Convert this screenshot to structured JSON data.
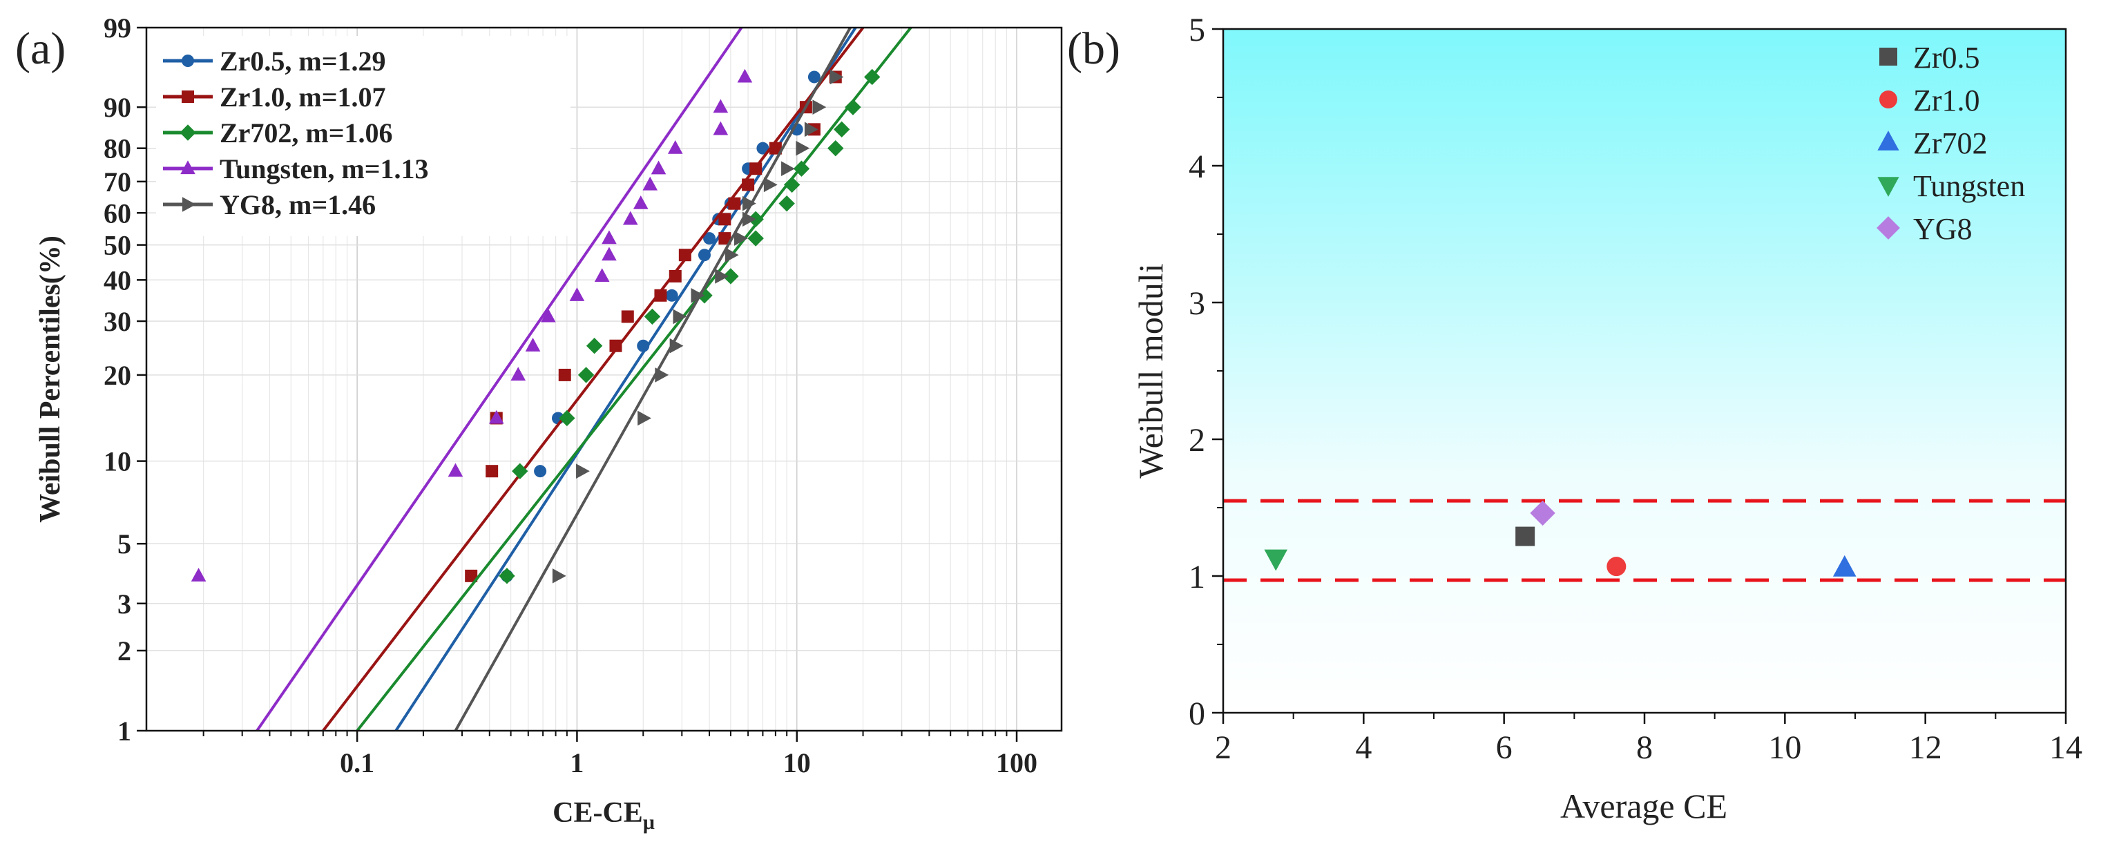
{
  "chart_data": [
    {
      "id": "a",
      "panel_label": "(a)",
      "type": "scatter",
      "subtype": "weibull-probability-plot",
      "xlabel_main": "CE-CE",
      "xlabel_sub": "μ",
      "ylabel": "Weibull Percentiles(%)",
      "x_scale": "log",
      "xlim": [
        0.011,
        160
      ],
      "x_ticks": [
        0.1,
        1,
        10,
        100
      ],
      "x_tick_labels": [
        "0.1",
        "1",
        "10",
        "100"
      ],
      "y_scale": "weibull",
      "ylim": [
        1,
        99
      ],
      "y_ticks": [
        1,
        2,
        3,
        5,
        10,
        20,
        30,
        40,
        50,
        60,
        70,
        80,
        90,
        99
      ],
      "y_tick_labels": [
        "1",
        "2",
        "3",
        "5",
        "10",
        "20",
        "30",
        "40",
        "50",
        "60",
        "70",
        "80",
        "90",
        "99"
      ],
      "grid": true,
      "legend_position": "top-left",
      "series": [
        {
          "name": "Zr0.5",
          "legend_label": "Zr0.5, m=1.29",
          "color": "#1f5fa6",
          "marker": "circle",
          "line_x": [
            0.15,
            18.5
          ],
          "points": [
            [
              0.48,
              3.8
            ],
            [
              0.68,
              9.2
            ],
            [
              0.82,
              14.2
            ],
            [
              2.0,
              25
            ],
            [
              2.7,
              36
            ],
            [
              3.8,
              47
            ],
            [
              4.0,
              52
            ],
            [
              4.4,
              58
            ],
            [
              5.0,
              63
            ],
            [
              6.0,
              74
            ],
            [
              7.0,
              80
            ],
            [
              10,
              85
            ],
            [
              12,
              95
            ]
          ]
        },
        {
          "name": "Zr1.0",
          "legend_label": "Zr1.0, m=1.07",
          "color": "#9a1414",
          "marker": "square",
          "line_x": [
            0.07,
            20
          ],
          "points": [
            [
              0.33,
              3.8
            ],
            [
              0.41,
              9.2
            ],
            [
              0.43,
              14.2
            ],
            [
              0.88,
              20
            ],
            [
              1.5,
              25
            ],
            [
              1.7,
              31
            ],
            [
              2.4,
              36
            ],
            [
              2.8,
              41
            ],
            [
              3.1,
              47
            ],
            [
              4.7,
              52
            ],
            [
              4.7,
              58
            ],
            [
              5.2,
              63
            ],
            [
              6.0,
              69
            ],
            [
              6.5,
              74
            ],
            [
              8.0,
              80
            ],
            [
              11,
              90
            ],
            [
              12,
              85
            ],
            [
              15,
              95
            ]
          ]
        },
        {
          "name": "Zr702",
          "legend_label": "Zr702, m=1.06",
          "color": "#1a8a2e",
          "marker": "diamond",
          "line_x": [
            0.1,
            33
          ],
          "points": [
            [
              0.48,
              3.8
            ],
            [
              0.55,
              9.2
            ],
            [
              0.9,
              14.2
            ],
            [
              1.1,
              20
            ],
            [
              1.2,
              25
            ],
            [
              2.2,
              31
            ],
            [
              3.8,
              36
            ],
            [
              5.0,
              41
            ],
            [
              6.5,
              52
            ],
            [
              6.5,
              58
            ],
            [
              9.0,
              63
            ],
            [
              9.5,
              69
            ],
            [
              10.5,
              74
            ],
            [
              15,
              80
            ],
            [
              16,
              85
            ],
            [
              18,
              90
            ],
            [
              22,
              95
            ]
          ]
        },
        {
          "name": "Tungsten",
          "legend_label": "Tungsten, m=1.13",
          "color": "#8e2cc8",
          "marker": "triangle-up",
          "line_x": [
            0.035,
            5.6
          ],
          "points": [
            [
              0.019,
              3.8
            ],
            [
              0.28,
              9.2
            ],
            [
              0.43,
              14.2
            ],
            [
              0.54,
              20
            ],
            [
              0.63,
              25
            ],
            [
              0.74,
              31
            ],
            [
              1.0,
              36
            ],
            [
              1.3,
              41
            ],
            [
              1.4,
              47
            ],
            [
              1.4,
              52
            ],
            [
              1.75,
              58
            ],
            [
              1.95,
              63
            ],
            [
              2.15,
              69
            ],
            [
              2.35,
              74
            ],
            [
              2.8,
              80
            ],
            [
              4.5,
              85
            ],
            [
              4.5,
              90
            ],
            [
              5.8,
              95
            ]
          ]
        },
        {
          "name": "YG8",
          "legend_label": "YG8, m=1.46",
          "color": "#555555",
          "marker": "triangle-right",
          "line_x": [
            0.28,
            17.5
          ],
          "points": [
            [
              0.82,
              3.8
            ],
            [
              1.05,
              9.2
            ],
            [
              2.0,
              14.2
            ],
            [
              2.4,
              20
            ],
            [
              2.8,
              25
            ],
            [
              2.9,
              31
            ],
            [
              3.5,
              36
            ],
            [
              4.5,
              41
            ],
            [
              5.0,
              47
            ],
            [
              5.5,
              52
            ],
            [
              6.0,
              58
            ],
            [
              6.0,
              63
            ],
            [
              7.5,
              69
            ],
            [
              9.0,
              74
            ],
            [
              10.5,
              80
            ],
            [
              11.5,
              85
            ],
            [
              12.5,
              90
            ],
            [
              15,
              95
            ]
          ]
        }
      ]
    },
    {
      "id": "b",
      "panel_label": "(b)",
      "type": "scatter",
      "xlabel": "Average CE",
      "ylabel": "Weibull moduli",
      "xlim": [
        2,
        14
      ],
      "ylim": [
        0,
        5
      ],
      "x_ticks": [
        2,
        4,
        6,
        8,
        10,
        12,
        14
      ],
      "x_tick_labels": [
        "2",
        "4",
        "6",
        "8",
        "10",
        "12",
        "14"
      ],
      "y_ticks": [
        0,
        1,
        2,
        3,
        4,
        5
      ],
      "y_tick_labels": [
        "0",
        "1",
        "2",
        "3",
        "4",
        "5"
      ],
      "background_gradient": [
        "#7ff8fc",
        "#ffffff"
      ],
      "legend_position": "top-right",
      "reference_lines": [
        {
          "y": 1.55,
          "color": "#e8141c",
          "style": "dashed"
        },
        {
          "y": 0.97,
          "color": "#e8141c",
          "style": "dashed"
        }
      ],
      "series": [
        {
          "name": "Zr0.5",
          "color": "#4d4d4d",
          "marker": "square",
          "x": 6.3,
          "y": 1.29
        },
        {
          "name": "Zr1.0",
          "color": "#ee3b3b",
          "marker": "circle",
          "x": 7.6,
          "y": 1.07
        },
        {
          "name": "Zr702",
          "color": "#2f6fe0",
          "marker": "triangle-up",
          "x": 10.85,
          "y": 1.06
        },
        {
          "name": "Tungsten",
          "color": "#2fa85a",
          "marker": "triangle-down",
          "x": 2.75,
          "y": 1.13
        },
        {
          "name": "YG8",
          "color": "#b77ce0",
          "marker": "diamond",
          "x": 6.55,
          "y": 1.46
        }
      ]
    }
  ]
}
